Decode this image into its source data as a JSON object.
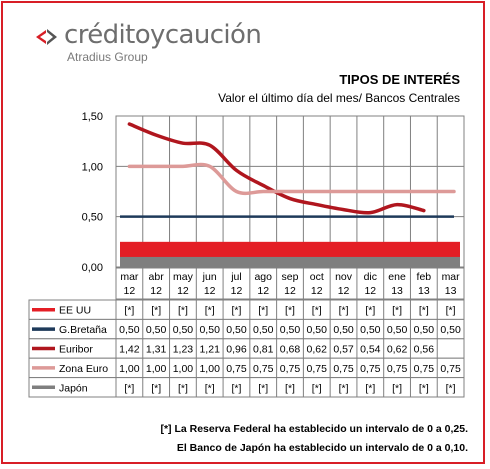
{
  "logo": {
    "brand": "créditoycaución",
    "group": "Atradius Group"
  },
  "header": {
    "title": "TIPOS DE INTERÉS",
    "subtitle": "Valor el último  día del mes/  Bancos Centrales"
  },
  "colors": {
    "frame": "#d81e26",
    "ee_uu": "#e41e25",
    "g_bretana": "#1e3a5a",
    "euribor": "#b0161e",
    "zona_euro": "#dd9a98",
    "japon": "#7f7f7f"
  },
  "chart_data": {
    "type": "line",
    "title": "TIPOS DE INTERÉS",
    "subtitle": "Valor el último  día del mes/  Bancos Centrales",
    "categories": [
      [
        "mar",
        "12"
      ],
      [
        "abr",
        "12"
      ],
      [
        "may",
        "12"
      ],
      [
        "jun",
        "12"
      ],
      [
        "jul",
        "12"
      ],
      [
        "ago",
        "12"
      ],
      [
        "sep",
        "12"
      ],
      [
        "oct",
        "12"
      ],
      [
        "nov",
        "12"
      ],
      [
        "dic",
        "12"
      ],
      [
        "ene",
        "13"
      ],
      [
        "feb",
        "13"
      ],
      [
        "mar",
        "13"
      ]
    ],
    "ylim": [
      0,
      1.5
    ],
    "yticks": [
      "0,00",
      "0,50",
      "1,00",
      "1,50"
    ],
    "ytick_values": [
      0,
      0.5,
      1,
      1.5
    ],
    "grid": true,
    "series": [
      {
        "name": "EE UU",
        "style": "band",
        "band": [
          0,
          0.25
        ],
        "values": [
          null,
          null,
          null,
          null,
          null,
          null,
          null,
          null,
          null,
          null,
          null,
          null,
          null
        ],
        "labels": [
          "[*]",
          "[*]",
          "[*]",
          "[*]",
          "[*]",
          "[*]",
          "[*]",
          "[*]",
          "[*]",
          "[*]",
          "[*]",
          "[*]",
          "[*]"
        ]
      },
      {
        "name": "G.Bretaña",
        "style": "flat",
        "values": [
          0.5,
          0.5,
          0.5,
          0.5,
          0.5,
          0.5,
          0.5,
          0.5,
          0.5,
          0.5,
          0.5,
          0.5,
          0.5
        ],
        "labels": [
          "0,50",
          "0,50",
          "0,50",
          "0,50",
          "0,50",
          "0,50",
          "0,50",
          "0,50",
          "0,50",
          "0,50",
          "0,50",
          "0,50",
          "0,50"
        ]
      },
      {
        "name": "Euribor",
        "style": "curve",
        "values": [
          1.42,
          1.31,
          1.23,
          1.21,
          0.96,
          0.81,
          0.68,
          0.62,
          0.57,
          0.54,
          0.62,
          0.56,
          null
        ],
        "labels": [
          "1,42",
          "1,31",
          "1,23",
          "1,21",
          "0,96",
          "0,81",
          "0,68",
          "0,62",
          "0,57",
          "0,54",
          "0,62",
          "0,56",
          ""
        ]
      },
      {
        "name": "Zona Euro",
        "style": "curve",
        "values": [
          1,
          1,
          1,
          1,
          0.75,
          0.75,
          0.75,
          0.75,
          0.75,
          0.75,
          0.75,
          0.75,
          0.75
        ],
        "labels": [
          "1,00",
          "1,00",
          "1,00",
          "1,00",
          "0,75",
          "0,75",
          "0,75",
          "0,75",
          "0,75",
          "0,75",
          "0,75",
          "0,75",
          "0,75"
        ]
      },
      {
        "name": "Japón",
        "style": "band",
        "band": [
          0,
          0.1
        ],
        "values": [
          null,
          null,
          null,
          null,
          null,
          null,
          null,
          null,
          null,
          null,
          null,
          null,
          null
        ],
        "labels": [
          "[*]",
          "[*]",
          "[*]",
          "[*]",
          "[*]",
          "[*]",
          "[*]",
          "[*]",
          "[*]",
          "[*]",
          "[*]",
          "[*]",
          "[*]"
        ]
      }
    ]
  },
  "notes": {
    "line1": "[*]  La Reserva Federal ha establecido un intervalo de 0 a 0,25.",
    "line2": "El Banco de Japón ha establecido un intervalo de 0 a 0,10."
  }
}
